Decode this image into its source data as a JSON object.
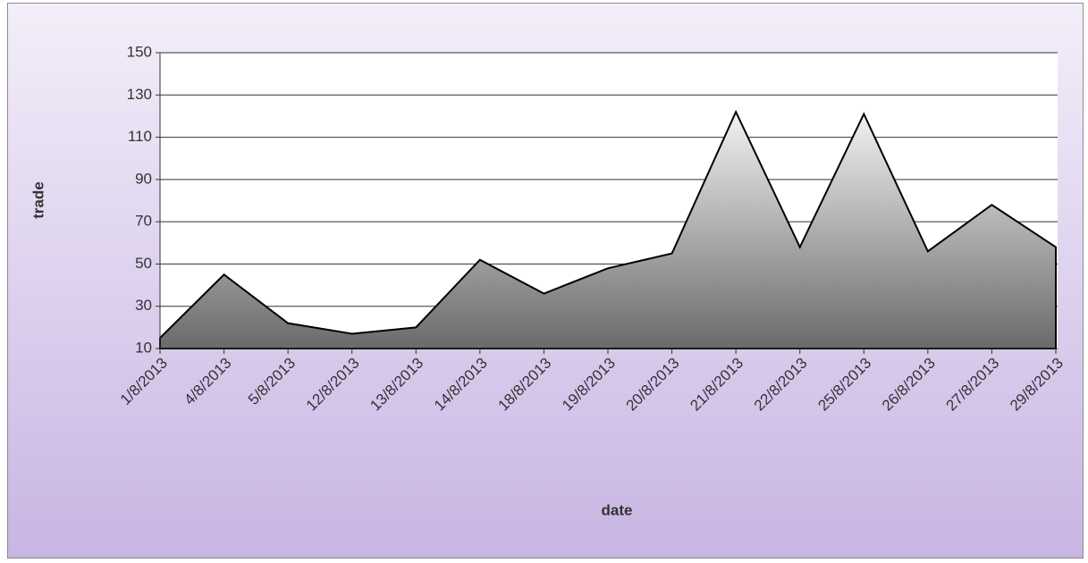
{
  "chart_data": {
    "type": "area",
    "x_label": "date",
    "y_label": "trade",
    "categories": [
      "1/8/2013",
      "4/8/2013",
      "5/8/2013",
      "12/8/2013",
      "13/8/2013",
      "14/8/2013",
      "18/8/2013",
      "19/8/2013",
      "20/8/2013",
      "21/8/2013",
      "22/8/2013",
      "25/8/2013",
      "26/8/2013",
      "27/8/2013",
      "29/8/2013"
    ],
    "values": [
      15,
      45,
      22,
      17,
      20,
      52,
      36,
      48,
      55,
      122,
      58,
      121,
      56,
      78,
      58
    ],
    "color": "#6a6a6a",
    "ylim": [
      10,
      150
    ],
    "yticks": [
      10,
      30,
      50,
      70,
      90,
      110,
      130,
      150
    ],
    "grid": true
  }
}
